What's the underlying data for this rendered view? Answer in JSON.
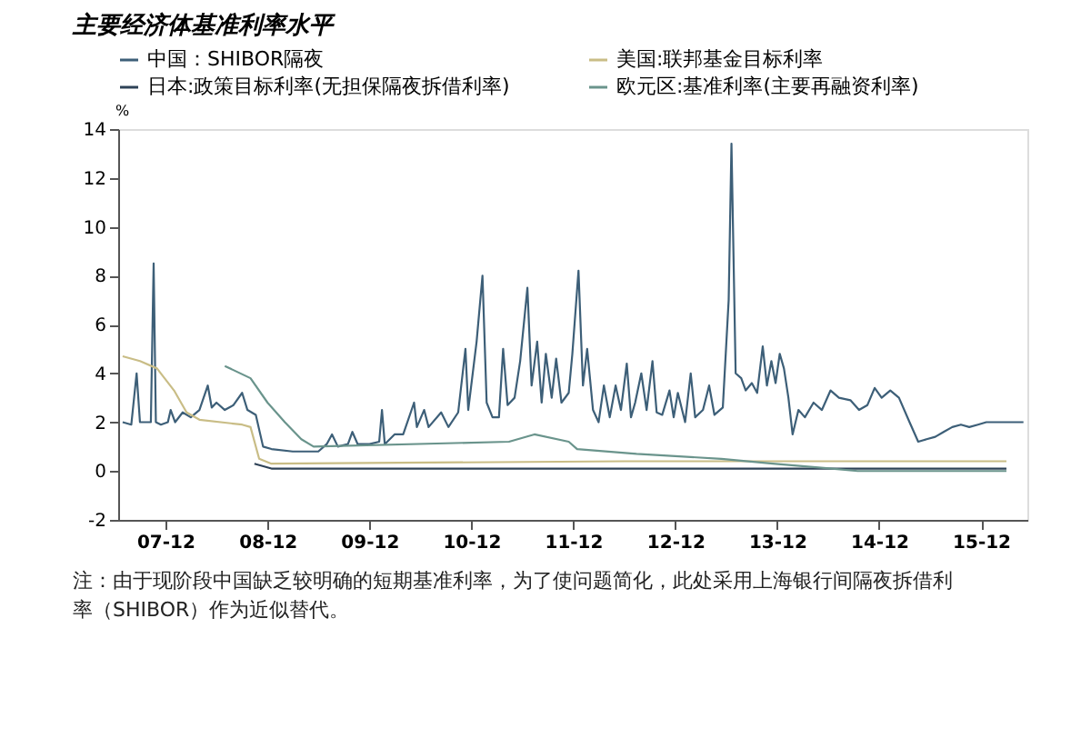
{
  "chart_data": {
    "type": "line",
    "title": "主要经济体基准利率水平",
    "ylabel": "%",
    "annotations": [
      "注：由于现阶段中国缺乏较明确的短期基准利率，为了使问题简化，此处采用上海银行间隔夜拆借利率（SHIBOR）作为近似替代。"
    ],
    "xlim": [
      "2007-06-15",
      "2016-05-15"
    ],
    "xticks": [
      {
        "value": "2007-12-01",
        "label": "07-12"
      },
      {
        "value": "2008-12-01",
        "label": "08-12"
      },
      {
        "value": "2009-12-01",
        "label": "09-12"
      },
      {
        "value": "2010-12-01",
        "label": "10-12"
      },
      {
        "value": "2011-12-01",
        "label": "11-12"
      },
      {
        "value": "2012-12-01",
        "label": "12-12"
      },
      {
        "value": "2013-12-01",
        "label": "13-12"
      },
      {
        "value": "2014-12-01",
        "label": "14-12"
      },
      {
        "value": "2015-12-01",
        "label": "15-12"
      }
    ],
    "ylim": [
      -2,
      14
    ],
    "yticks": [
      -2,
      0,
      2,
      4,
      6,
      8,
      10,
      12,
      14
    ],
    "grid": false,
    "legend": "top",
    "line_style": "solid",
    "marker": "none",
    "series": [
      {
        "name": "中国：SHIBOR隔夜",
        "color": "#3d5f78",
        "x": [
          "2007-07-01",
          "2007-08-01",
          "2007-08-20",
          "2007-09-01",
          "2007-10-10",
          "2007-10-20",
          "2007-10-28",
          "2007-11-15",
          "2007-12-10",
          "2007-12-20",
          "2008-01-05",
          "2008-02-01",
          "2008-03-01",
          "2008-04-01",
          "2008-05-01",
          "2008-05-15",
          "2008-06-01",
          "2008-07-01",
          "2008-08-01",
          "2008-09-01",
          "2008-09-20",
          "2008-10-20",
          "2008-11-15",
          "2008-12-15",
          "2009-03-01",
          "2009-06-01",
          "2009-07-01",
          "2009-07-20",
          "2009-08-10",
          "2009-09-15",
          "2009-10-01",
          "2009-10-20",
          "2009-12-01",
          "2010-01-05",
          "2010-01-15",
          "2010-01-25",
          "2010-03-01",
          "2010-04-01",
          "2010-05-10",
          "2010-05-20",
          "2010-06-15",
          "2010-07-01",
          "2010-08-15",
          "2010-09-10",
          "2010-10-15",
          "2010-11-10",
          "2010-11-20",
          "2010-12-20",
          "2011-01-10",
          "2011-01-25",
          "2011-02-15",
          "2011-03-10",
          "2011-03-25",
          "2011-04-10",
          "2011-05-05",
          "2011-05-25",
          "2011-06-20",
          "2011-07-05",
          "2011-07-25",
          "2011-08-10",
          "2011-08-25",
          "2011-09-15",
          "2011-10-01",
          "2011-10-20",
          "2011-11-15",
          "2011-11-28",
          "2011-12-20",
          "2012-01-05",
          "2012-01-20",
          "2012-02-10",
          "2012-03-01",
          "2012-03-20",
          "2012-04-10",
          "2012-05-01",
          "2012-05-20",
          "2012-06-10",
          "2012-06-25",
          "2012-07-10",
          "2012-08-01",
          "2012-08-20",
          "2012-09-10",
          "2012-09-25",
          "2012-10-15",
          "2012-11-10",
          "2012-11-25",
          "2012-12-10",
          "2013-01-05",
          "2013-01-25",
          "2013-02-10",
          "2013-03-10",
          "2013-04-01",
          "2013-04-20",
          "2013-05-20",
          "2013-06-10",
          "2013-06-20",
          "2013-07-05",
          "2013-07-25",
          "2013-08-10",
          "2013-09-01",
          "2013-09-20",
          "2013-10-10",
          "2013-10-25",
          "2013-11-10",
          "2013-11-25",
          "2013-12-10",
          "2013-12-25",
          "2014-01-10",
          "2014-01-25",
          "2014-02-15",
          "2014-03-10",
          "2014-04-10",
          "2014-05-10",
          "2014-06-10",
          "2014-07-10",
          "2014-08-20",
          "2014-09-20",
          "2014-10-20",
          "2014-11-15",
          "2014-12-10",
          "2015-01-10",
          "2015-02-10",
          "2015-03-20",
          "2015-04-20",
          "2015-05-20",
          "2015-06-20",
          "2015-07-20",
          "2015-08-20",
          "2015-09-20",
          "2015-10-20",
          "2015-11-20",
          "2015-12-20",
          "2016-02-01",
          "2016-04-01",
          "2016-05-01"
        ],
        "values": [
          2.0,
          1.9,
          4.0,
          2.0,
          2.0,
          8.5,
          2.0,
          1.9,
          2.0,
          2.5,
          2.0,
          2.4,
          2.2,
          2.5,
          3.5,
          2.6,
          2.8,
          2.5,
          2.7,
          3.2,
          2.5,
          2.3,
          1.0,
          0.9,
          0.8,
          0.8,
          1.1,
          1.5,
          1.0,
          1.1,
          1.6,
          1.1,
          1.1,
          1.2,
          2.5,
          1.1,
          1.5,
          1.5,
          2.8,
          1.8,
          2.5,
          1.8,
          2.4,
          1.8,
          2.4,
          5.0,
          2.5,
          5.3,
          8.0,
          2.8,
          2.2,
          2.2,
          5.0,
          2.7,
          3.0,
          4.5,
          7.5,
          3.5,
          5.3,
          2.8,
          4.8,
          3.0,
          4.6,
          2.8,
          3.2,
          4.8,
          8.2,
          3.5,
          5.0,
          2.5,
          2.0,
          3.5,
          2.2,
          3.5,
          2.5,
          4.4,
          2.2,
          2.8,
          4.0,
          2.5,
          4.5,
          2.4,
          2.3,
          3.3,
          2.2,
          3.2,
          2.0,
          4.0,
          2.2,
          2.5,
          3.5,
          2.3,
          2.6,
          7.0,
          13.4,
          4.0,
          3.8,
          3.3,
          3.6,
          3.2,
          5.1,
          3.5,
          4.5,
          3.6,
          4.8,
          4.2,
          3.0,
          1.5,
          2.5,
          2.2,
          2.8,
          2.5,
          3.3,
          3.0,
          2.9,
          2.5,
          2.7,
          3.4,
          3.0,
          3.3,
          3.0,
          2.0,
          1.2,
          1.3,
          1.4,
          1.6,
          1.8,
          1.9,
          1.8,
          1.9,
          2.0,
          2.0,
          2.0,
          2.0
        ]
      },
      {
        "name": "美国:联邦基金目标利率",
        "color": "#c9bd86",
        "x": [
          "2007-07-01",
          "2007-09-01",
          "2007-11-01",
          "2008-01-01",
          "2008-02-15",
          "2008-04-01",
          "2008-09-01",
          "2008-10-01",
          "2008-11-01",
          "2008-12-15",
          "2012-06-01",
          "2016-03-01"
        ],
        "values": [
          4.7,
          4.5,
          4.2,
          3.3,
          2.4,
          2.1,
          1.9,
          1.8,
          0.5,
          0.3,
          0.4,
          0.4
        ]
      },
      {
        "name": "日本:政策目标利率(无担保隔夜拆借利率)",
        "color": "#2e4257",
        "x": [
          "2008-10-15",
          "2008-12-15",
          "2016-03-01"
        ],
        "values": [
          0.3,
          0.1,
          0.1
        ]
      },
      {
        "name": "欧元区:基准利率(主要再融资利率)",
        "color": "#6a948c",
        "x": [
          "2008-07-01",
          "2008-10-01",
          "2008-12-01",
          "2009-02-01",
          "2009-04-01",
          "2009-05-15",
          "2011-04-15",
          "2011-07-15",
          "2011-11-15",
          "2011-12-15",
          "2012-07-15",
          "2013-05-15",
          "2013-11-15",
          "2014-06-15",
          "2014-09-15",
          "2016-03-01"
        ],
        "values": [
          4.3,
          3.8,
          2.8,
          2.0,
          1.3,
          1.0,
          1.2,
          1.5,
          1.2,
          0.9,
          0.7,
          0.5,
          0.3,
          0.1,
          0.0,
          0.0
        ]
      }
    ]
  }
}
